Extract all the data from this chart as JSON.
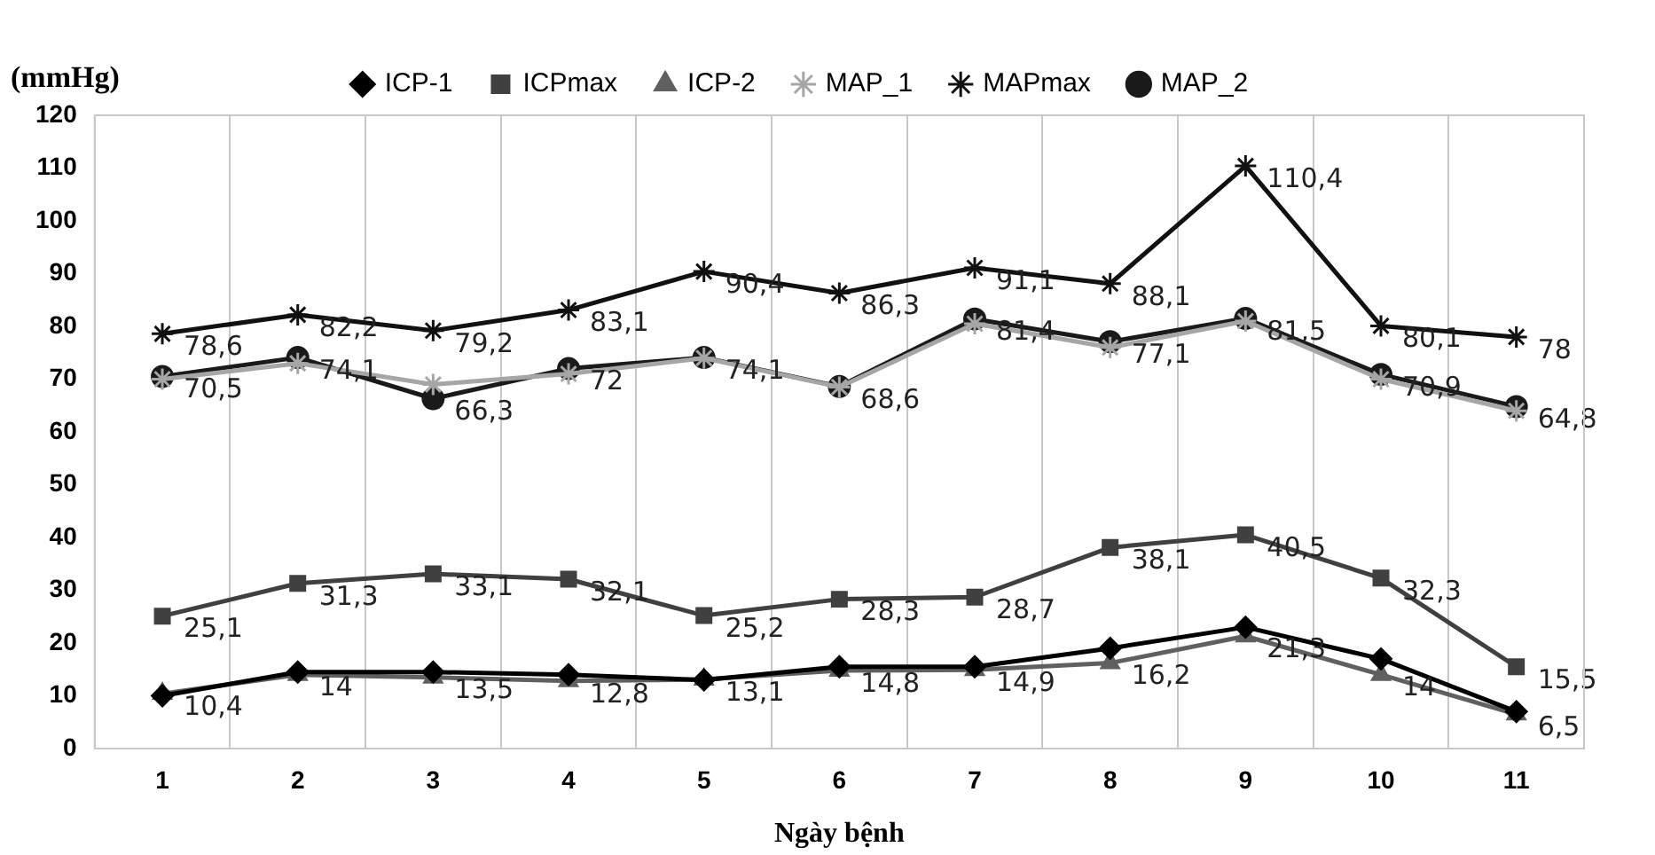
{
  "chart_data": {
    "type": "line",
    "xlabel": "Ngày bệnh",
    "ylabel": "(mmHg)",
    "categories": [
      "1",
      "2",
      "3",
      "4",
      "5",
      "6",
      "7",
      "8",
      "9",
      "10",
      "11"
    ],
    "ylim": [
      0,
      120
    ],
    "yticks": [
      0,
      10,
      20,
      30,
      40,
      50,
      60,
      70,
      80,
      90,
      100,
      110,
      120
    ],
    "grid": "x",
    "legend": "top",
    "series": [
      {
        "name": "ICP-1",
        "color": "#000000",
        "marker": "diamond",
        "values": [
          10,
          14.5,
          14.5,
          14,
          13,
          15.5,
          15.5,
          19,
          23,
          17,
          7
        ]
      },
      {
        "name": "ICPmax",
        "color": "#404040",
        "marker": "square",
        "values": [
          25.1,
          31.3,
          33.1,
          32.1,
          25.2,
          28.3,
          28.7,
          38.1,
          40.5,
          32.3,
          15.5
        ],
        "value_labels": [
          "25,1",
          "31,3",
          "33,1",
          "32,1",
          "25,2",
          "28,3",
          "28,7",
          "38,1",
          "40,5",
          "32,3",
          "15,5"
        ]
      },
      {
        "name": "ICP-2",
        "color": "#606060",
        "marker": "triangle",
        "values": [
          10.4,
          14,
          13.5,
          12.8,
          13.1,
          14.8,
          14.9,
          16.2,
          21.3,
          14,
          6.5
        ],
        "value_labels": [
          "10,4",
          "14",
          "13,5",
          "12,8",
          "13,1",
          "14,8",
          "14,9",
          "16,2",
          "21,3",
          "14",
          "6,5"
        ]
      },
      {
        "name": "MAP_1",
        "color": "#a6a6a6",
        "marker": "cross",
        "values": [
          70,
          73,
          69,
          71,
          74,
          68.5,
          80.5,
          76,
          81,
          70,
          64
        ]
      },
      {
        "name": "MAPmax",
        "color": "#111111",
        "marker": "cross",
        "values": [
          78.6,
          82.2,
          79.2,
          83.1,
          90.4,
          86.3,
          91.1,
          88.1,
          110.4,
          80.1,
          78
        ],
        "value_labels": [
          "78,6",
          "82,2",
          "79,2",
          "83,1",
          "90,4",
          "86,3",
          "91,1",
          "88,1",
          "110,4",
          "80,1",
          "78"
        ]
      },
      {
        "name": "MAP_2",
        "color": "#1a1a1a",
        "marker": "circle",
        "values": [
          70.5,
          74.1,
          66.3,
          72,
          74.1,
          68.6,
          81.4,
          77.1,
          81.5,
          70.9,
          64.8
        ],
        "value_labels": [
          "70,5",
          "74,1",
          "66,3",
          "72",
          "74,1",
          "68,6",
          "81,4",
          "77,1",
          "81,5",
          "70,9",
          "64,8"
        ]
      }
    ]
  }
}
